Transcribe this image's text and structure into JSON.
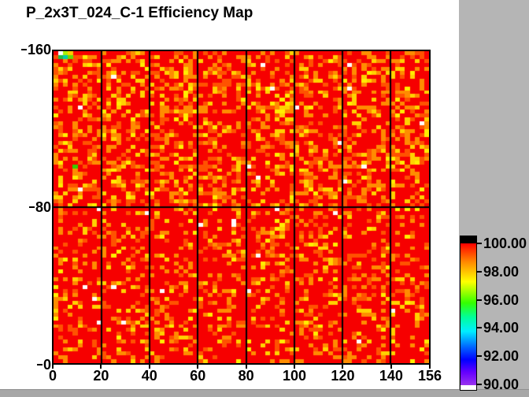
{
  "window": {
    "background_color": "#ffffff",
    "side_panel_color": "#b5b5b5",
    "bottom_strip_color": "#a7a7a7"
  },
  "title": "P_2x3T_024_C-1 Efficiency Map",
  "chart_data": {
    "type": "heatmap",
    "title": "P_2x3T_024_C-1 Efficiency Map",
    "xlabel": "",
    "ylabel": "",
    "x_range": [
      0,
      156
    ],
    "y_range": [
      0,
      160
    ],
    "grid_on": true,
    "x_ticks": [
      {
        "value": 0,
        "label": "0"
      },
      {
        "value": 20,
        "label": "20"
      },
      {
        "value": 40,
        "label": "40"
      },
      {
        "value": 60,
        "label": "60"
      },
      {
        "value": 80,
        "label": "80"
      },
      {
        "value": 100,
        "label": "100"
      },
      {
        "value": 120,
        "label": "120"
      },
      {
        "value": 140,
        "label": "140"
      },
      {
        "value": 156,
        "label": "156"
      }
    ],
    "y_ticks": [
      {
        "value": 160,
        "label": "160"
      },
      {
        "value": 80,
        "label": "80"
      },
      {
        "value": 0,
        "label": "0"
      }
    ],
    "module_grid": {
      "vertical_boundaries_x": [
        20,
        40,
        60,
        80,
        100,
        120,
        140
      ],
      "horizontal_boundary_y": 80,
      "boundary_color": "#000000"
    },
    "cells": {
      "cols": 78,
      "rows": 80,
      "note": "efficiency per 2x2 channel cell; mostly 99-100% (red) with scattered 98-99% (orange) and ~98% (yellow) cells",
      "palette": {
        "red": "#f60000",
        "orange_red": "#ff5200",
        "orange": "#ff8c00",
        "yellow": "#ffd200",
        "bright_yellow": "#ffee00",
        "white": "#ffffff"
      },
      "distribution_upper_half": {
        "red": 0.55,
        "orange": 0.16,
        "orange_red": 0.16,
        "yellow": 0.095,
        "bright_yellow": 0.03,
        "white": 0.005
      },
      "distribution_lower_half": {
        "red": 0.7,
        "orange": 0.11,
        "orange_red": 0.11,
        "yellow": 0.058,
        "bright_yellow": 0.017,
        "white": 0.005
      },
      "special_cells": [
        {
          "col": 1,
          "row": 0,
          "color": "#ffffff"
        },
        {
          "col": 2,
          "row": 0,
          "color": "#aaee00"
        },
        {
          "col": 3,
          "row": 0,
          "color": "#ffcc00"
        },
        {
          "col": 1,
          "row": 1,
          "color": "#22bb44"
        },
        {
          "col": 2,
          "row": 1,
          "color": "#00ccaa"
        },
        {
          "col": 3,
          "row": 1,
          "color": "#66dd00"
        },
        {
          "col": 4,
          "row": 29,
          "color": "#33cc00"
        }
      ],
      "random_seed": 1337
    },
    "colorbar": {
      "min": 90.0,
      "max": 100.0,
      "overflow_color_top": "#000000",
      "underflow_color_bottom": "#ffffff",
      "ticks": [
        {
          "value": 100,
          "label": "100.00"
        },
        {
          "value": 98,
          "label": "98.00"
        },
        {
          "value": 96,
          "label": "96.00"
        },
        {
          "value": 94,
          "label": "94.00"
        },
        {
          "value": 92,
          "label": "92.00"
        },
        {
          "value": 90,
          "label": "90.00"
        }
      ],
      "gradient_stops_top_to_bottom": [
        {
          "color": "#ff0000",
          "pos": 0
        },
        {
          "color": "#ff8800",
          "pos": 13
        },
        {
          "color": "#ffff00",
          "pos": 27
        },
        {
          "color": "#33ff00",
          "pos": 42
        },
        {
          "color": "#00ff99",
          "pos": 52
        },
        {
          "color": "#00eeff",
          "pos": 62
        },
        {
          "color": "#0066ff",
          "pos": 73
        },
        {
          "color": "#0000ff",
          "pos": 82
        },
        {
          "color": "#6600ff",
          "pos": 91
        },
        {
          "color": "#9933ee",
          "pos": 100
        }
      ]
    }
  }
}
